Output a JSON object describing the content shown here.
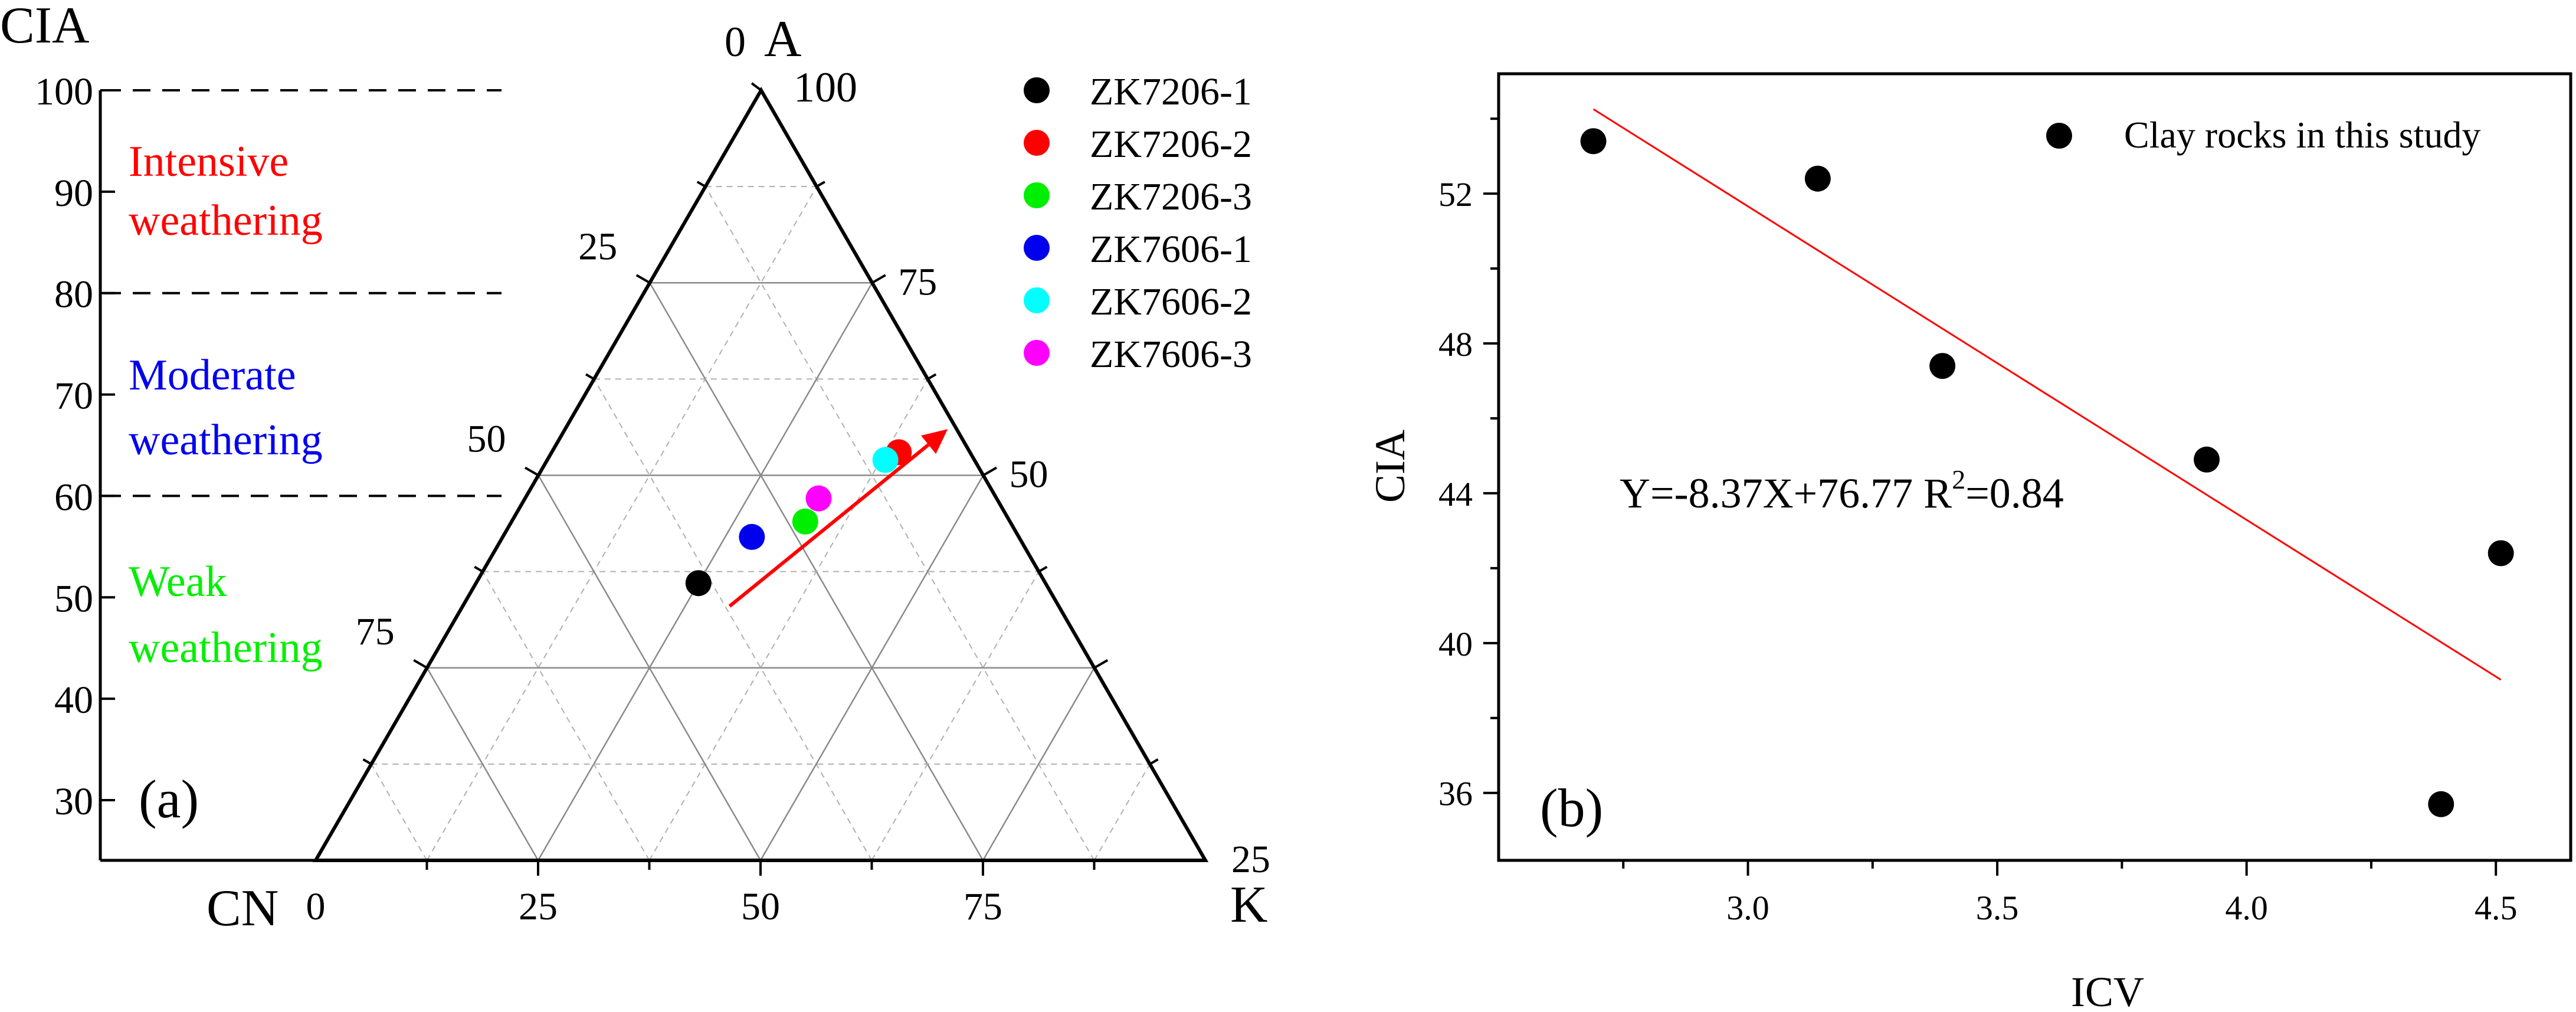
{
  "chart_data": [
    {
      "panel_label": "(a)",
      "type": "scatter",
      "chart_kind": "ternary",
      "cia_scale": {
        "label": "CIA",
        "ticks": [
          30,
          40,
          50,
          60,
          70,
          80,
          90,
          100
        ],
        "range": [
          26,
          100
        ],
        "threshold_lines": [
          100,
          80,
          60
        ],
        "zones": [
          {
            "line1": "Intensive",
            "line2": "weathering",
            "color": "#ff0000",
            "from": 80,
            "to": 100
          },
          {
            "line1": "Moderate",
            "line2": "weathering",
            "color": "#0000ee",
            "from": 60,
            "to": 80
          },
          {
            "line1": "Weak",
            "line2": "weathering",
            "color": "#00ee00",
            "from": 30,
            "to": 60
          }
        ]
      },
      "ternary": {
        "vertex_labels": {
          "top": "A",
          "left": "CN",
          "right": "K"
        },
        "top_value": "100",
        "apex_label": "0",
        "left_edge_ticks": [
          {
            "a": 75,
            "label": "25"
          },
          {
            "a": 50,
            "label": "50"
          },
          {
            "a": 25,
            "label": "75"
          }
        ],
        "right_edge_ticks": [
          {
            "a": 75,
            "label": "75"
          },
          {
            "a": 50,
            "label": "50"
          },
          {
            "a": 0,
            "label": "25"
          }
        ],
        "bottom_edge_ticks": [
          {
            "k": 0,
            "label": "0"
          },
          {
            "k": 25,
            "label": "25"
          },
          {
            "k": 50,
            "label": "50"
          },
          {
            "k": 75,
            "label": "75"
          }
        ],
        "main_grid_step": 25,
        "minor_grid_step": 12.5
      },
      "series": [
        {
          "name": "ZK7206-1",
          "color": "#000000",
          "a": 36,
          "k": 25
        },
        {
          "name": "ZK7206-2",
          "color": "#ff0000",
          "a": 53,
          "k": 39
        },
        {
          "name": "ZK7206-3",
          "color": "#00ee00",
          "a": 44,
          "k": 33
        },
        {
          "name": "ZK7606-1",
          "color": "#0000ee",
          "a": 42,
          "k": 28
        },
        {
          "name": "ZK7606-2",
          "color": "#00ffff",
          "a": 52,
          "k": 38
        },
        {
          "name": "ZK7606-3",
          "color": "#ff00ff",
          "a": 47,
          "k": 33
        }
      ],
      "arrow": {
        "color": "#ff0000",
        "from": {
          "a": 33,
          "k": 30
        },
        "to": {
          "a": 56,
          "k": 43
        }
      },
      "legend_position": "top-right"
    },
    {
      "panel_label": "(b)",
      "type": "scatter",
      "xlabel": "ICV",
      "ylabel": "CIA",
      "xlim": [
        2.5,
        4.65
      ],
      "ylim": [
        34.2,
        55.2
      ],
      "xticks": [
        3.0,
        3.5,
        4.0,
        4.5
      ],
      "xtick_labels": [
        "3.0",
        "3.5",
        "4.0",
        "4.5"
      ],
      "yticks": [
        36,
        40,
        44,
        48,
        52
      ],
      "yticks_minor": [
        38,
        42,
        46,
        50,
        54
      ],
      "xticks_minor": [
        2.75,
        3.25,
        3.75,
        4.25
      ],
      "series": [
        {
          "name": "Clay rocks in this study",
          "color": "#000000",
          "points": [
            {
              "x": 2.69,
              "y": 53.4
            },
            {
              "x": 3.14,
              "y": 52.4
            },
            {
              "x": 3.39,
              "y": 47.4
            },
            {
              "x": 3.92,
              "y": 44.9
            },
            {
              "x": 4.51,
              "y": 42.4
            },
            {
              "x": 4.39,
              "y": 35.7
            }
          ]
        }
      ],
      "fit_line": {
        "color": "#ff0000",
        "x": [
          2.69,
          4.51
        ]
      },
      "equation": {
        "prefix": "Y=-8.37X+76.77 R",
        "sup": "2",
        "suffix": "=0.84"
      },
      "legend_position": "top-right"
    }
  ]
}
